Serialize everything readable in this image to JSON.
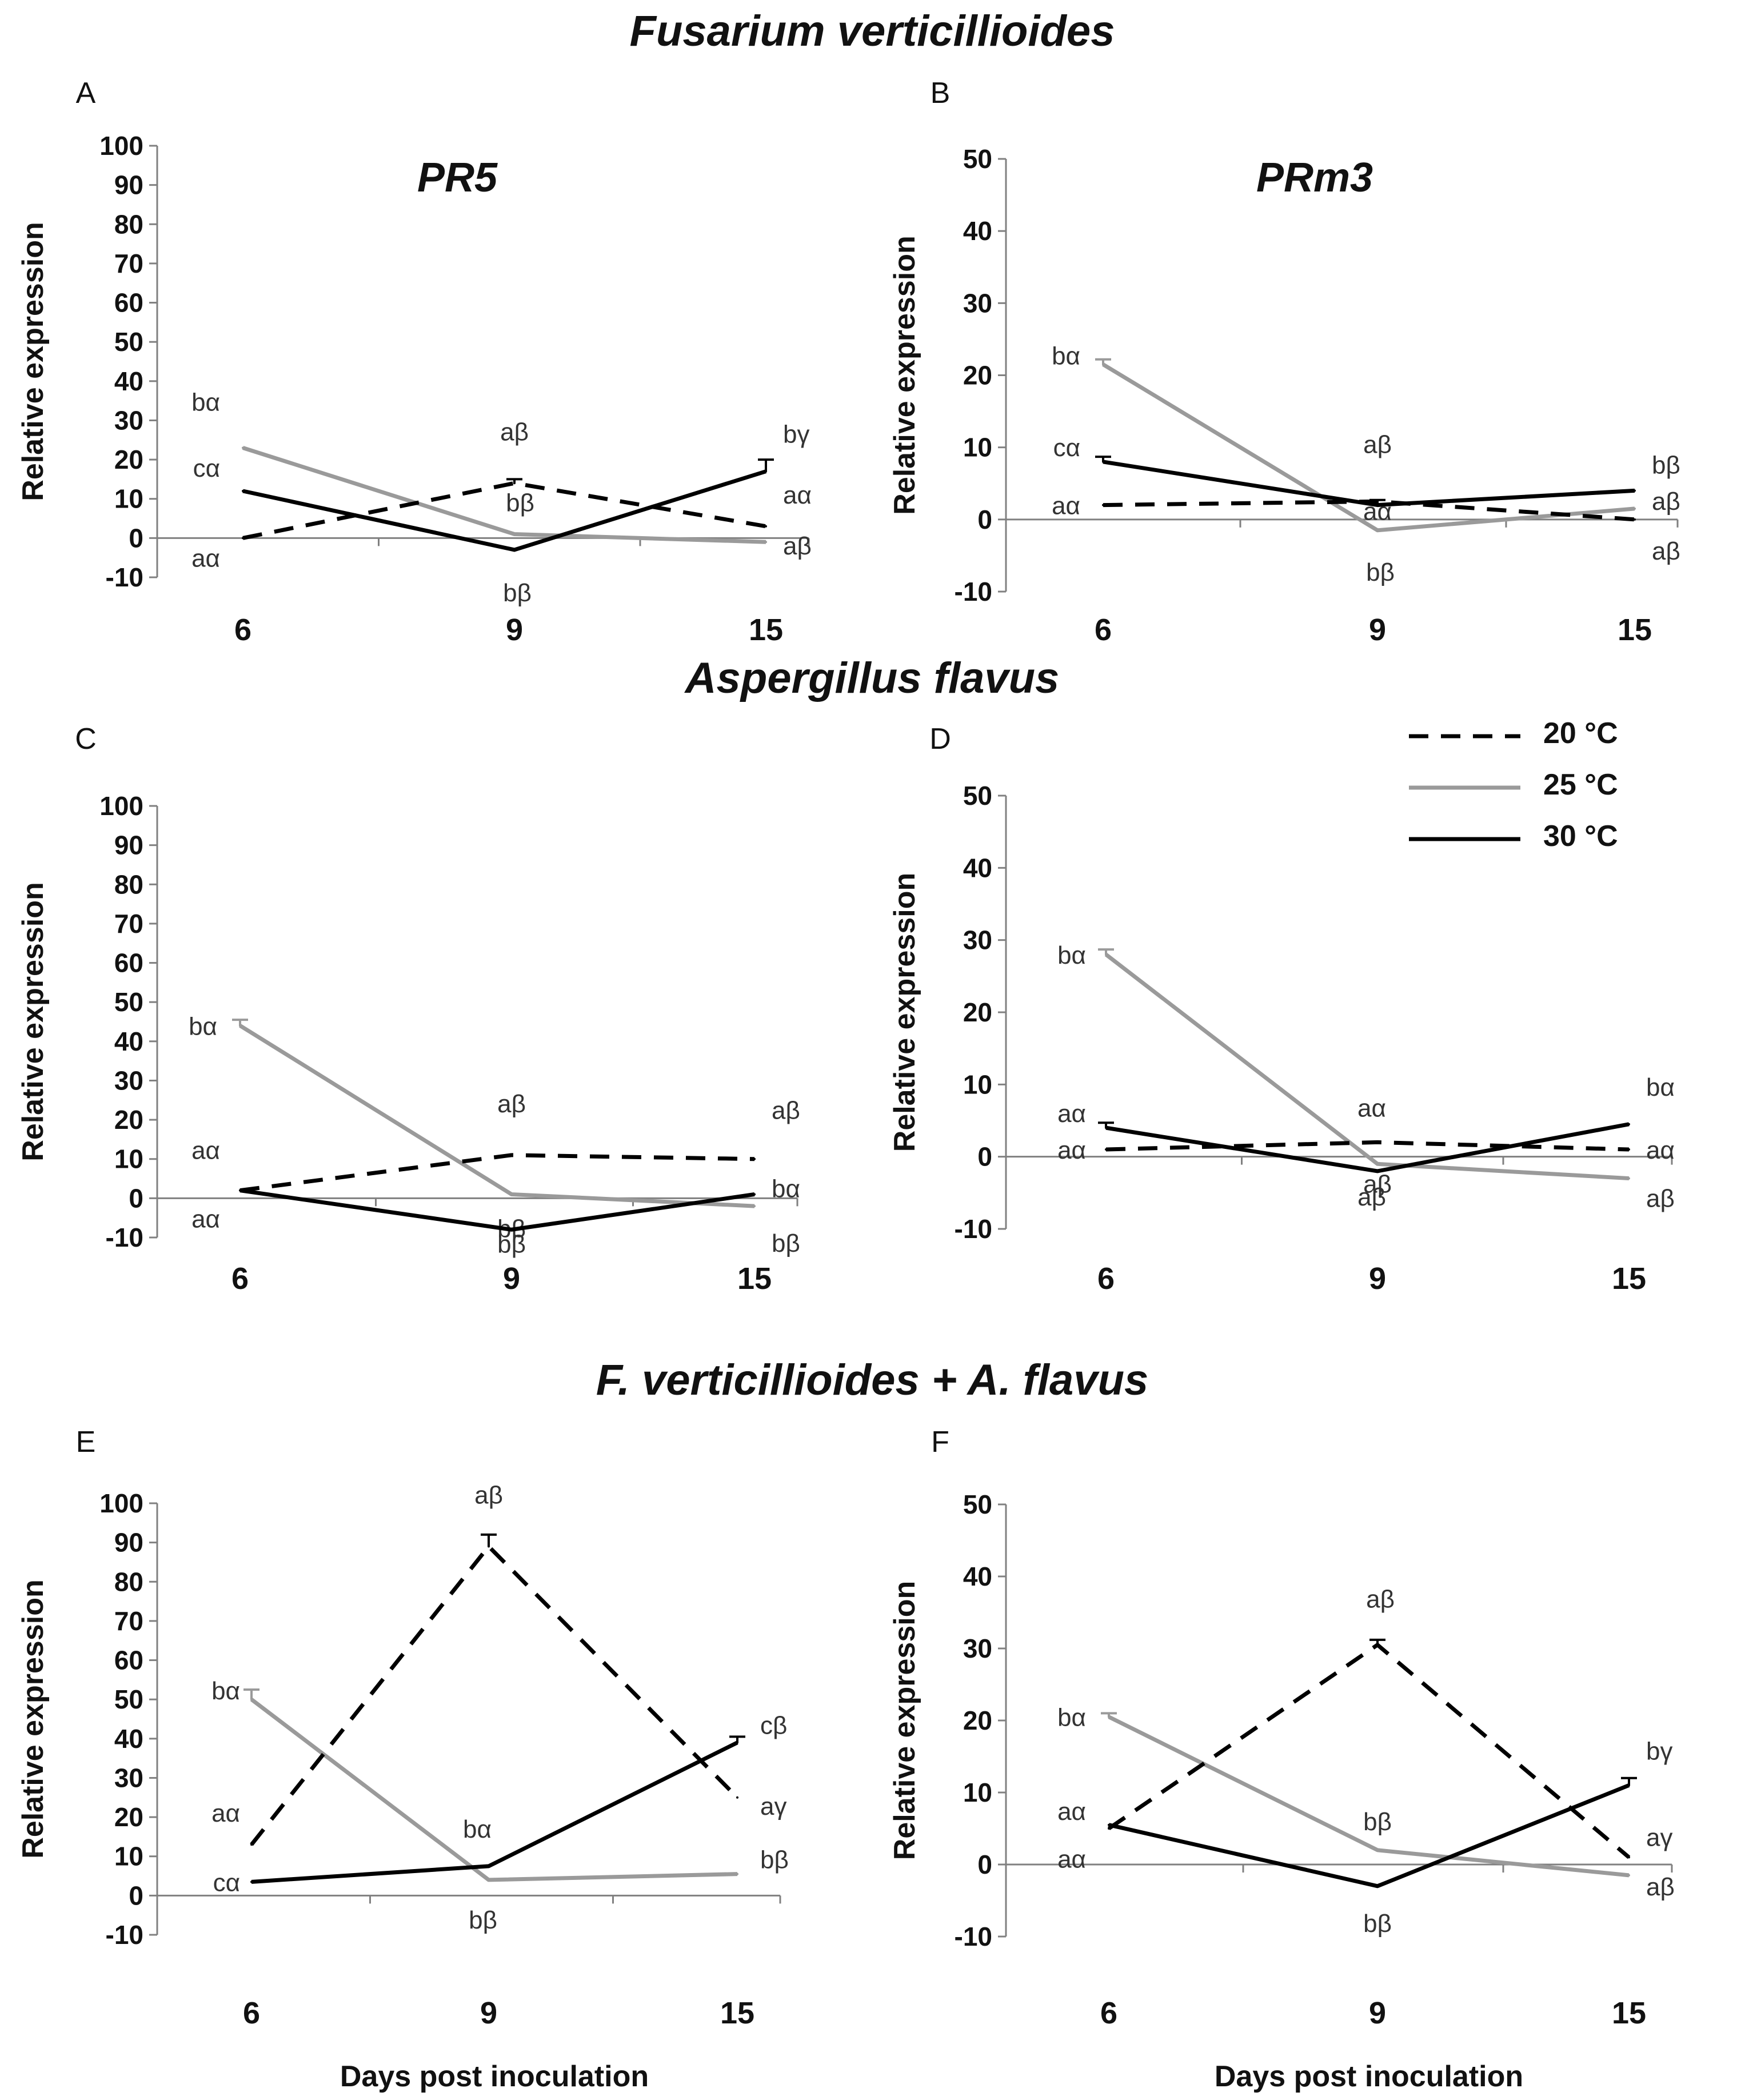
{
  "sections": {
    "fv": "Fusarium verticillioides",
    "af": "Aspergillus flavus",
    "mix": "F. verticillioides + A. flavus"
  },
  "legend": {
    "entries": [
      {
        "label": "20 °C",
        "style": "dashed",
        "color": "#000000"
      },
      {
        "label": "25 °C",
        "style": "solid",
        "color": "#9a9a9a"
      },
      {
        "label": "30 °C",
        "style": "solid",
        "color": "#000000"
      }
    ]
  },
  "chart_data": [
    {
      "panel": "A",
      "title": "PR5",
      "type": "line",
      "categories": [
        "6",
        "9",
        "15"
      ],
      "ylabel": "Relative expression",
      "xlabel": "",
      "ylim": [
        -10,
        100
      ],
      "yticks": [
        -10,
        0,
        10,
        20,
        30,
        40,
        50,
        60,
        70,
        80,
        90,
        100
      ],
      "series": [
        {
          "name": "20 °C",
          "values": [
            0,
            14,
            3
          ],
          "errors": [
            0,
            1,
            0
          ],
          "labels": [
            "aα",
            "aβ",
            "aα"
          ]
        },
        {
          "name": "25 °C",
          "values": [
            23,
            1,
            -1
          ],
          "errors": [
            0,
            0,
            0
          ],
          "labels": [
            "bα",
            "bβ",
            "aβ"
          ]
        },
        {
          "name": "30 °C",
          "values": [
            12,
            -3,
            17
          ],
          "errors": [
            0,
            0,
            3
          ],
          "labels": [
            "cα",
            "bβ",
            "bγ"
          ]
        }
      ]
    },
    {
      "panel": "B",
      "title": "PRm3",
      "type": "line",
      "categories": [
        "6",
        "9",
        "15"
      ],
      "ylabel": "Relative expression",
      "xlabel": "",
      "ylim": [
        -10,
        50
      ],
      "yticks": [
        -10,
        0,
        10,
        20,
        30,
        40,
        50
      ],
      "series": [
        {
          "name": "20 °C",
          "values": [
            2,
            2.5,
            0
          ],
          "errors": [
            0,
            0,
            0
          ],
          "labels": [
            "aα",
            "aβ",
            "aβ"
          ]
        },
        {
          "name": "25 °C",
          "values": [
            21.5,
            -1.5,
            1.5
          ],
          "errors": [
            0.7,
            0,
            0
          ],
          "labels": [
            "bα",
            "bβ",
            "aβ"
          ]
        },
        {
          "name": "30 °C",
          "values": [
            8,
            2,
            4
          ],
          "errors": [
            0.7,
            0.7,
            0
          ],
          "labels": [
            "cα",
            "aα",
            "bβ"
          ]
        }
      ]
    },
    {
      "panel": "C",
      "title": "",
      "type": "line",
      "categories": [
        "6",
        "9",
        "15"
      ],
      "ylabel": "Relative expression",
      "xlabel": "",
      "ylim": [
        -10,
        100
      ],
      "yticks": [
        -10,
        0,
        10,
        20,
        30,
        40,
        50,
        60,
        70,
        80,
        90,
        100
      ],
      "series": [
        {
          "name": "20 °C",
          "values": [
            2,
            11,
            10
          ],
          "errors": [
            0,
            0,
            0
          ],
          "labels": [
            "aα",
            "aβ",
            "aβ"
          ]
        },
        {
          "name": "25 °C",
          "values": [
            44,
            1,
            -2
          ],
          "errors": [
            1.5,
            0,
            0
          ],
          "labels": [
            "bα",
            "bβ",
            "bβ"
          ]
        },
        {
          "name": "30 °C",
          "values": [
            2,
            -8,
            1
          ],
          "errors": [
            0,
            0,
            0
          ],
          "labels": [
            "aα",
            "bβ",
            "bα"
          ]
        }
      ]
    },
    {
      "panel": "D",
      "title": "",
      "type": "line",
      "categories": [
        "6",
        "9",
        "15"
      ],
      "ylabel": "Relative expression",
      "xlabel": "",
      "ylim": [
        -10,
        50
      ],
      "yticks": [
        -10,
        0,
        10,
        20,
        30,
        40,
        50
      ],
      "series": [
        {
          "name": "20 °C",
          "values": [
            1,
            2,
            1
          ],
          "errors": [
            0,
            0,
            0
          ],
          "labels": [
            "aα",
            "aα",
            "aα"
          ]
        },
        {
          "name": "25 °C",
          "values": [
            28,
            -1,
            -3
          ],
          "errors": [
            0.7,
            0,
            0
          ],
          "labels": [
            "bα",
            "aβ",
            "aβ"
          ]
        },
        {
          "name": "30 °C",
          "values": [
            4,
            -2,
            4.5
          ],
          "errors": [
            0.7,
            0,
            0
          ],
          "labels": [
            "aα",
            "aβ",
            "bα"
          ]
        }
      ]
    },
    {
      "panel": "E",
      "title": "",
      "type": "line",
      "categories": [
        "6",
        "9",
        "15"
      ],
      "ylabel": "Relative expression",
      "xlabel": "Days post inoculation",
      "ylim": [
        -10,
        100
      ],
      "yticks": [
        -10,
        0,
        10,
        20,
        30,
        40,
        50,
        60,
        70,
        80,
        90,
        100
      ],
      "series": [
        {
          "name": "20 °C",
          "values": [
            13,
            89,
            25
          ],
          "errors": [
            0,
            3,
            0
          ],
          "labels": [
            "aα",
            "aβ",
            "aγ"
          ]
        },
        {
          "name": "25 °C",
          "values": [
            50,
            4,
            5.5
          ],
          "errors": [
            2.5,
            0,
            0
          ],
          "labels": [
            "bα",
            "bβ",
            "bβ"
          ]
        },
        {
          "name": "30 °C",
          "values": [
            3.5,
            7.5,
            39
          ],
          "errors": [
            0,
            0,
            1.5
          ],
          "labels": [
            "cα",
            "bα",
            "cβ"
          ]
        }
      ]
    },
    {
      "panel": "F",
      "title": "",
      "type": "line",
      "categories": [
        "6",
        "9",
        "15"
      ],
      "ylabel": "Relative expression",
      "xlabel": "Days post inoculation",
      "ylim": [
        -10,
        50
      ],
      "yticks": [
        -10,
        0,
        10,
        20,
        30,
        40,
        50
      ],
      "series": [
        {
          "name": "20 °C",
          "values": [
            5,
            30.5,
            1
          ],
          "errors": [
            0,
            0.7,
            0
          ],
          "labels": [
            "aα",
            "aβ",
            "aγ"
          ]
        },
        {
          "name": "25 °C",
          "values": [
            20.5,
            2,
            -1.5
          ],
          "errors": [
            0.5,
            0,
            0
          ],
          "labels": [
            "bα",
            "bβ",
            "aβ"
          ]
        },
        {
          "name": "30 °C",
          "values": [
            5.5,
            -3,
            11
          ],
          "errors": [
            0,
            0,
            1
          ],
          "labels": [
            "aα",
            "bβ",
            "bγ"
          ]
        }
      ]
    }
  ]
}
